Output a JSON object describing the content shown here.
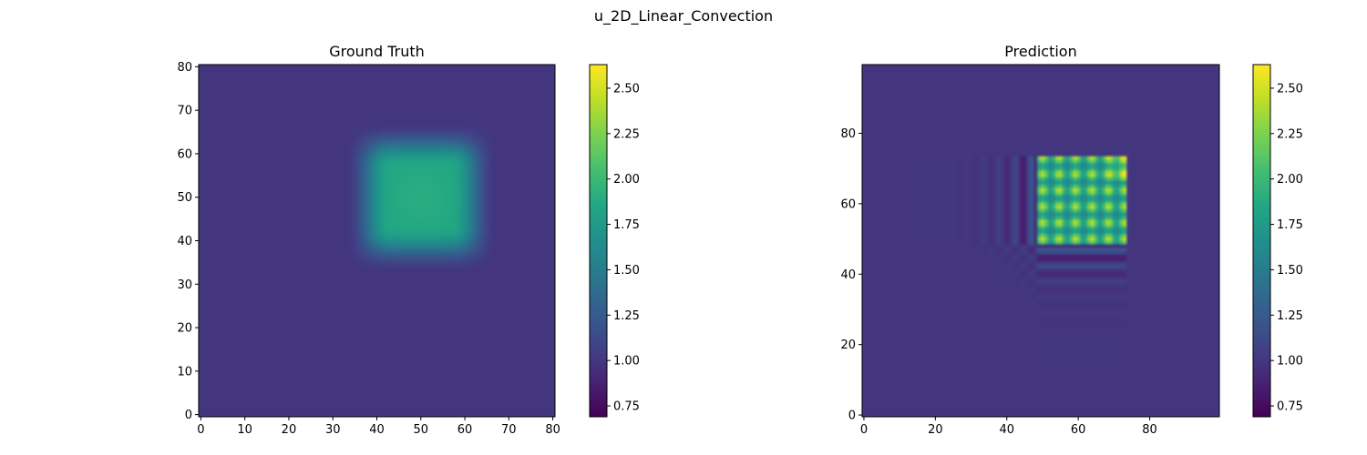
{
  "figure": {
    "suptitle": "u_2D_Linear_Convection"
  },
  "chart_data": [
    {
      "type": "heatmap",
      "title": "Ground Truth",
      "xlabel": "",
      "ylabel": "",
      "grid_size": 81,
      "xlim": [
        -0.5,
        80.5
      ],
      "ylim": [
        -0.5,
        80.5
      ],
      "xticks": [
        0,
        10,
        20,
        30,
        40,
        50,
        60,
        70,
        80
      ],
      "yticks": [
        0,
        10,
        20,
        30,
        40,
        50,
        60,
        70,
        80
      ],
      "colormap": "viridis",
      "colorbar": {
        "vmin": 0.69,
        "vmax": 2.63,
        "ticks": [
          0.75,
          1.0,
          1.25,
          1.5,
          1.75,
          2.0,
          2.25,
          2.5
        ]
      },
      "background_value": 1.0,
      "feature": {
        "shape": "smoothed square",
        "center": [
          50,
          50
        ],
        "half_width": 11,
        "peak_value": 1.9
      }
    },
    {
      "type": "heatmap",
      "title": "Prediction",
      "xlabel": "",
      "ylabel": "",
      "grid_size": 100,
      "xlim": [
        -0.5,
        99.5
      ],
      "ylim": [
        -0.5,
        99.5
      ],
      "xticks": [
        0,
        20,
        40,
        60,
        80
      ],
      "yticks": [
        0,
        20,
        40,
        60,
        80
      ],
      "colormap": "viridis",
      "colorbar": {
        "vmin": 0.69,
        "vmax": 2.63,
        "ticks": [
          0.75,
          1.0,
          1.25,
          1.5,
          1.75,
          2.0,
          2.25,
          2.5
        ]
      },
      "background_value": 1.0,
      "feature": {
        "shape": "square with grid of peaks and ringing artifacts",
        "x_range": [
          50,
          72
        ],
        "y_range": [
          50,
          72
        ],
        "peak_value": 2.6,
        "min_value": 0.7
      }
    }
  ]
}
